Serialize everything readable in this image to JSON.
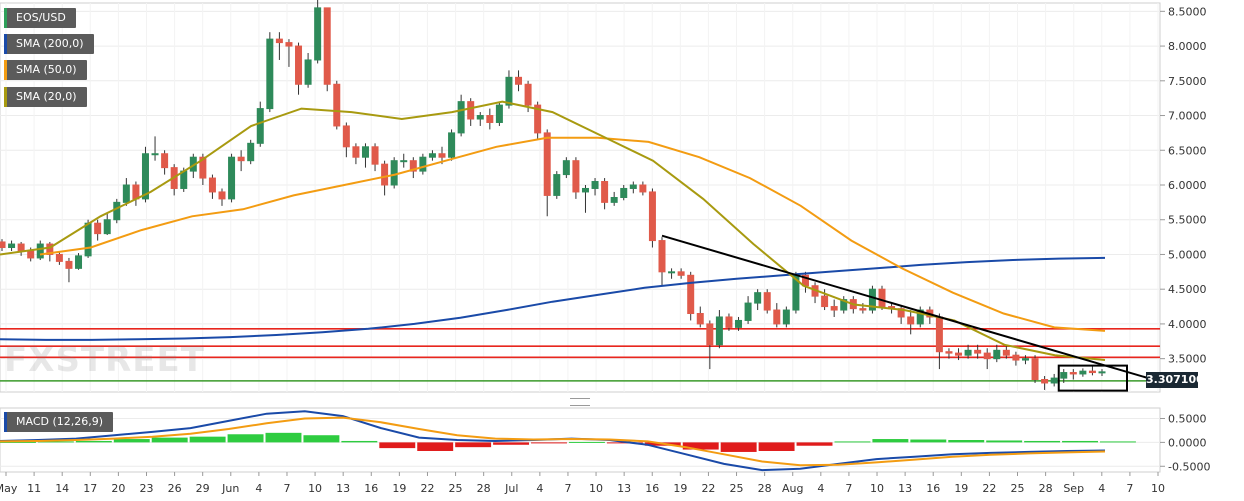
{
  "pair": "EOS/USD",
  "legend": [
    {
      "label": "SMA (200,0)",
      "color": "#1a4aa8"
    },
    {
      "label": "SMA (50,0)",
      "color": "#f39c12"
    },
    {
      "label": "SMA (20,0)",
      "color": "#a89a10"
    }
  ],
  "macd_label": "MACD (12,26,9)",
  "current_price": "3.307100",
  "watermark": "FXSTREET",
  "chart_data": {
    "type": "candlestick",
    "title": "EOS/USD",
    "price_axis": {
      "ticks": [
        "8.5000",
        "8.0000",
        "7.5000",
        "7.0000",
        "6.5000",
        "6.0000",
        "5.5000",
        "5.0000",
        "4.5000",
        "4.0000",
        "3.5000"
      ],
      "range": [
        3.02,
        8.62
      ]
    },
    "macd_axis": {
      "ticks": [
        "0.5000",
        "0.0000",
        "-0.5000"
      ],
      "range": [
        -0.62,
        0.72
      ]
    },
    "x_labels": [
      "May",
      "11",
      "14",
      "17",
      "20",
      "23",
      "26",
      "29",
      "Jun",
      "4",
      "7",
      "10",
      "13",
      "16",
      "19",
      "22",
      "25",
      "28",
      "Jul",
      "4",
      "7",
      "10",
      "13",
      "16",
      "19",
      "22",
      "25",
      "28",
      "Aug",
      "4",
      "7",
      "10",
      "13",
      "16",
      "19",
      "22",
      "25",
      "28",
      "Sep",
      "4",
      "7",
      "10"
    ],
    "candles": [
      [
        5.18,
        5.1,
        5.22,
        5.05
      ],
      [
        5.1,
        5.15,
        5.2,
        5.05
      ],
      [
        5.15,
        5.05,
        5.18,
        4.98
      ],
      [
        5.05,
        4.95,
        5.1,
        4.9
      ],
      [
        4.95,
        5.15,
        5.2,
        4.92
      ],
      [
        5.15,
        5.0,
        5.18,
        4.9
      ],
      [
        5.0,
        4.9,
        5.05,
        4.85
      ],
      [
        4.9,
        4.8,
        4.95,
        4.6
      ],
      [
        4.8,
        4.98,
        5.02,
        4.78
      ],
      [
        4.98,
        5.45,
        5.5,
        4.95
      ],
      [
        5.45,
        5.3,
        5.5,
        5.2
      ],
      [
        5.3,
        5.5,
        5.6,
        5.28
      ],
      [
        5.5,
        5.75,
        5.8,
        5.45
      ],
      [
        5.75,
        6.0,
        6.1,
        5.7
      ],
      [
        6.0,
        5.8,
        6.05,
        5.7
      ],
      [
        5.8,
        6.45,
        6.55,
        5.75
      ],
      [
        6.45,
        6.45,
        6.7,
        6.35
      ],
      [
        6.45,
        6.25,
        6.5,
        6.15
      ],
      [
        6.25,
        5.95,
        6.3,
        5.85
      ],
      [
        5.95,
        6.2,
        6.25,
        5.9
      ],
      [
        6.2,
        6.4,
        6.45,
        6.1
      ],
      [
        6.4,
        6.1,
        6.45,
        6.0
      ],
      [
        6.1,
        5.9,
        6.15,
        5.8
      ],
      [
        5.9,
        5.8,
        5.95,
        5.7
      ],
      [
        5.8,
        6.4,
        6.45,
        5.75
      ],
      [
        6.4,
        6.35,
        6.5,
        6.2
      ],
      [
        6.35,
        6.6,
        6.65,
        6.3
      ],
      [
        6.6,
        7.1,
        7.2,
        6.55
      ],
      [
        7.1,
        8.1,
        8.2,
        7.05
      ],
      [
        8.1,
        8.05,
        8.2,
        7.8
      ],
      [
        8.05,
        8.0,
        8.1,
        7.7
      ],
      [
        8.0,
        7.45,
        8.05,
        7.3
      ],
      [
        7.45,
        7.8,
        7.9,
        7.4
      ],
      [
        7.8,
        8.55,
        8.7,
        7.75
      ],
      [
        8.55,
        7.45,
        8.55,
        7.35
      ],
      [
        7.45,
        6.85,
        7.5,
        6.8
      ],
      [
        6.85,
        6.55,
        6.9,
        6.4
      ],
      [
        6.55,
        6.4,
        6.6,
        6.3
      ],
      [
        6.4,
        6.55,
        6.6,
        6.25
      ],
      [
        6.55,
        6.3,
        6.6,
        6.2
      ],
      [
        6.3,
        6.0,
        6.35,
        5.85
      ],
      [
        6.0,
        6.35,
        6.4,
        5.95
      ],
      [
        6.35,
        6.35,
        6.45,
        6.25
      ],
      [
        6.35,
        6.2,
        6.4,
        6.1
      ],
      [
        6.2,
        6.4,
        6.45,
        6.15
      ],
      [
        6.4,
        6.45,
        6.5,
        6.35
      ],
      [
        6.45,
        6.4,
        6.55,
        6.3
      ],
      [
        6.4,
        6.75,
        6.8,
        6.35
      ],
      [
        6.75,
        7.2,
        7.3,
        6.7
      ],
      [
        7.2,
        6.95,
        7.25,
        6.85
      ],
      [
        6.95,
        7.0,
        7.05,
        6.85
      ],
      [
        7.0,
        6.9,
        7.1,
        6.8
      ],
      [
        6.9,
        7.15,
        7.2,
        6.85
      ],
      [
        7.15,
        7.55,
        7.65,
        7.1
      ],
      [
        7.55,
        7.45,
        7.65,
        7.35
      ],
      [
        7.45,
        7.15,
        7.5,
        7.05
      ],
      [
        7.15,
        6.75,
        7.2,
        6.65
      ],
      [
        6.75,
        5.85,
        6.8,
        5.55
      ],
      [
        5.85,
        6.15,
        6.2,
        5.8
      ],
      [
        6.15,
        6.35,
        6.4,
        6.1
      ],
      [
        6.35,
        5.9,
        6.4,
        5.8
      ],
      [
        5.9,
        5.95,
        6.0,
        5.6
      ],
      [
        5.95,
        6.05,
        6.1,
        5.85
      ],
      [
        6.05,
        5.75,
        6.1,
        5.65
      ],
      [
        5.75,
        5.82,
        5.9,
        5.7
      ],
      [
        5.82,
        5.95,
        6.0,
        5.78
      ],
      [
        5.95,
        6.0,
        6.05,
        5.88
      ],
      [
        6.0,
        5.9,
        6.05,
        5.85
      ],
      [
        5.9,
        5.2,
        5.95,
        5.1
      ],
      [
        5.2,
        4.75,
        5.25,
        4.55
      ],
      [
        4.75,
        4.75,
        4.8,
        4.65
      ],
      [
        4.75,
        4.7,
        4.8,
        4.65
      ],
      [
        4.7,
        4.15,
        4.75,
        4.05
      ],
      [
        4.15,
        4.0,
        4.25,
        3.95
      ],
      [
        4.0,
        3.7,
        4.05,
        3.35
      ],
      [
        3.7,
        4.1,
        4.2,
        3.65
      ],
      [
        4.1,
        3.95,
        4.15,
        3.9
      ],
      [
        3.95,
        4.05,
        4.1,
        3.9
      ],
      [
        4.05,
        4.3,
        4.4,
        4.0
      ],
      [
        4.3,
        4.45,
        4.5,
        4.2
      ],
      [
        4.45,
        4.2,
        4.5,
        4.15
      ],
      [
        4.2,
        4.0,
        4.3,
        3.95
      ],
      [
        4.0,
        4.2,
        4.25,
        3.95
      ],
      [
        4.2,
        4.7,
        4.75,
        4.15
      ],
      [
        4.7,
        4.55,
        4.75,
        4.45
      ],
      [
        4.55,
        4.4,
        4.6,
        4.3
      ],
      [
        4.4,
        4.25,
        4.5,
        4.2
      ],
      [
        4.25,
        4.2,
        4.35,
        4.1
      ],
      [
        4.2,
        4.35,
        4.4,
        4.15
      ],
      [
        4.35,
        4.22,
        4.4,
        4.15
      ],
      [
        4.22,
        4.2,
        4.3,
        4.15
      ],
      [
        4.2,
        4.5,
        4.55,
        4.15
      ],
      [
        4.5,
        4.25,
        4.55,
        4.2
      ],
      [
        4.25,
        4.22,
        4.3,
        4.15
      ],
      [
        4.22,
        4.1,
        4.25,
        4.0
      ],
      [
        4.1,
        4.0,
        4.2,
        3.85
      ],
      [
        4.0,
        4.2,
        4.25,
        3.95
      ],
      [
        4.2,
        4.1,
        4.25,
        4.0
      ],
      [
        4.1,
        3.6,
        4.15,
        3.35
      ],
      [
        3.6,
        3.58,
        3.65,
        3.5
      ],
      [
        3.58,
        3.55,
        3.65,
        3.48
      ],
      [
        3.55,
        3.62,
        3.7,
        3.5
      ],
      [
        3.62,
        3.58,
        3.7,
        3.5
      ],
      [
        3.58,
        3.5,
        3.65,
        3.35
      ],
      [
        3.5,
        3.62,
        3.7,
        3.45
      ],
      [
        3.62,
        3.55,
        3.7,
        3.5
      ],
      [
        3.55,
        3.48,
        3.6,
        3.4
      ],
      [
        3.48,
        3.5,
        3.55,
        3.42
      ],
      [
        3.5,
        3.2,
        3.55,
        3.15
      ],
      [
        3.2,
        3.15,
        3.25,
        3.05
      ],
      [
        3.15,
        3.22,
        3.28,
        3.1
      ],
      [
        3.22,
        3.3,
        3.35,
        3.15
      ],
      [
        3.3,
        3.28,
        3.35,
        3.2
      ],
      [
        3.28,
        3.32,
        3.36,
        3.24
      ],
      [
        3.32,
        3.3,
        3.4,
        3.26
      ],
      [
        3.3,
        3.31,
        3.35,
        3.25
      ]
    ],
    "sma200": [
      3.78,
      3.77,
      3.77,
      3.78,
      3.79,
      3.81,
      3.84,
      3.88,
      3.93,
      4.0,
      4.09,
      4.2,
      4.32,
      4.42,
      4.52,
      4.59,
      4.65,
      4.7,
      4.75,
      4.8,
      4.85,
      4.89,
      4.92,
      4.94,
      4.95
    ],
    "sma50": [
      5.0,
      5.1,
      5.35,
      5.55,
      5.65,
      5.85,
      6.0,
      6.15,
      6.35,
      6.55,
      6.68,
      6.68,
      6.62,
      6.4,
      6.1,
      5.7,
      5.2,
      4.8,
      4.45,
      4.15,
      3.95,
      3.9
    ],
    "sma20": [
      5.0,
      5.1,
      5.55,
      5.9,
      6.35,
      6.85,
      7.1,
      7.05,
      6.95,
      7.05,
      7.2,
      7.05,
      6.7,
      6.35,
      5.8,
      5.15,
      4.55,
      4.28,
      4.2,
      4.05,
      3.7,
      3.55,
      3.48
    ],
    "resistance_lines": [
      3.93,
      3.68,
      3.52
    ],
    "support_line": 3.18,
    "trendline": [
      [
        5.27,
        3.17
      ]
    ],
    "macd": {
      "macd_line": [
        0.03,
        0.05,
        0.08,
        0.15,
        0.22,
        0.3,
        0.45,
        0.6,
        0.65,
        0.55,
        0.3,
        0.1,
        0.05,
        0.03,
        0.05,
        0.08,
        0.05,
        -0.05,
        -0.25,
        -0.45,
        -0.58,
        -0.55,
        -0.45,
        -0.35,
        -0.3,
        -0.25,
        -0.22,
        -0.2,
        -0.18,
        -0.17
      ],
      "signal_line": [
        0.02,
        0.03,
        0.05,
        0.08,
        0.12,
        0.18,
        0.28,
        0.4,
        0.5,
        0.52,
        0.42,
        0.28,
        0.15,
        0.08,
        0.06,
        0.07,
        0.06,
        0.02,
        -0.1,
        -0.25,
        -0.4,
        -0.48,
        -0.47,
        -0.42,
        -0.36,
        -0.3,
        -0.26,
        -0.23,
        -0.21,
        -0.19
      ],
      "histogram": [
        0.01,
        0.02,
        0.03,
        0.07,
        0.1,
        0.12,
        0.17,
        0.2,
        0.15,
        0.03,
        -0.12,
        -0.18,
        -0.1,
        -0.05,
        -0.01,
        0.01,
        -0.01,
        -0.07,
        -0.15,
        -0.2,
        -0.18,
        -0.07,
        0.02,
        0.07,
        0.06,
        0.05,
        0.04,
        0.03,
        0.03,
        0.02
      ]
    }
  }
}
